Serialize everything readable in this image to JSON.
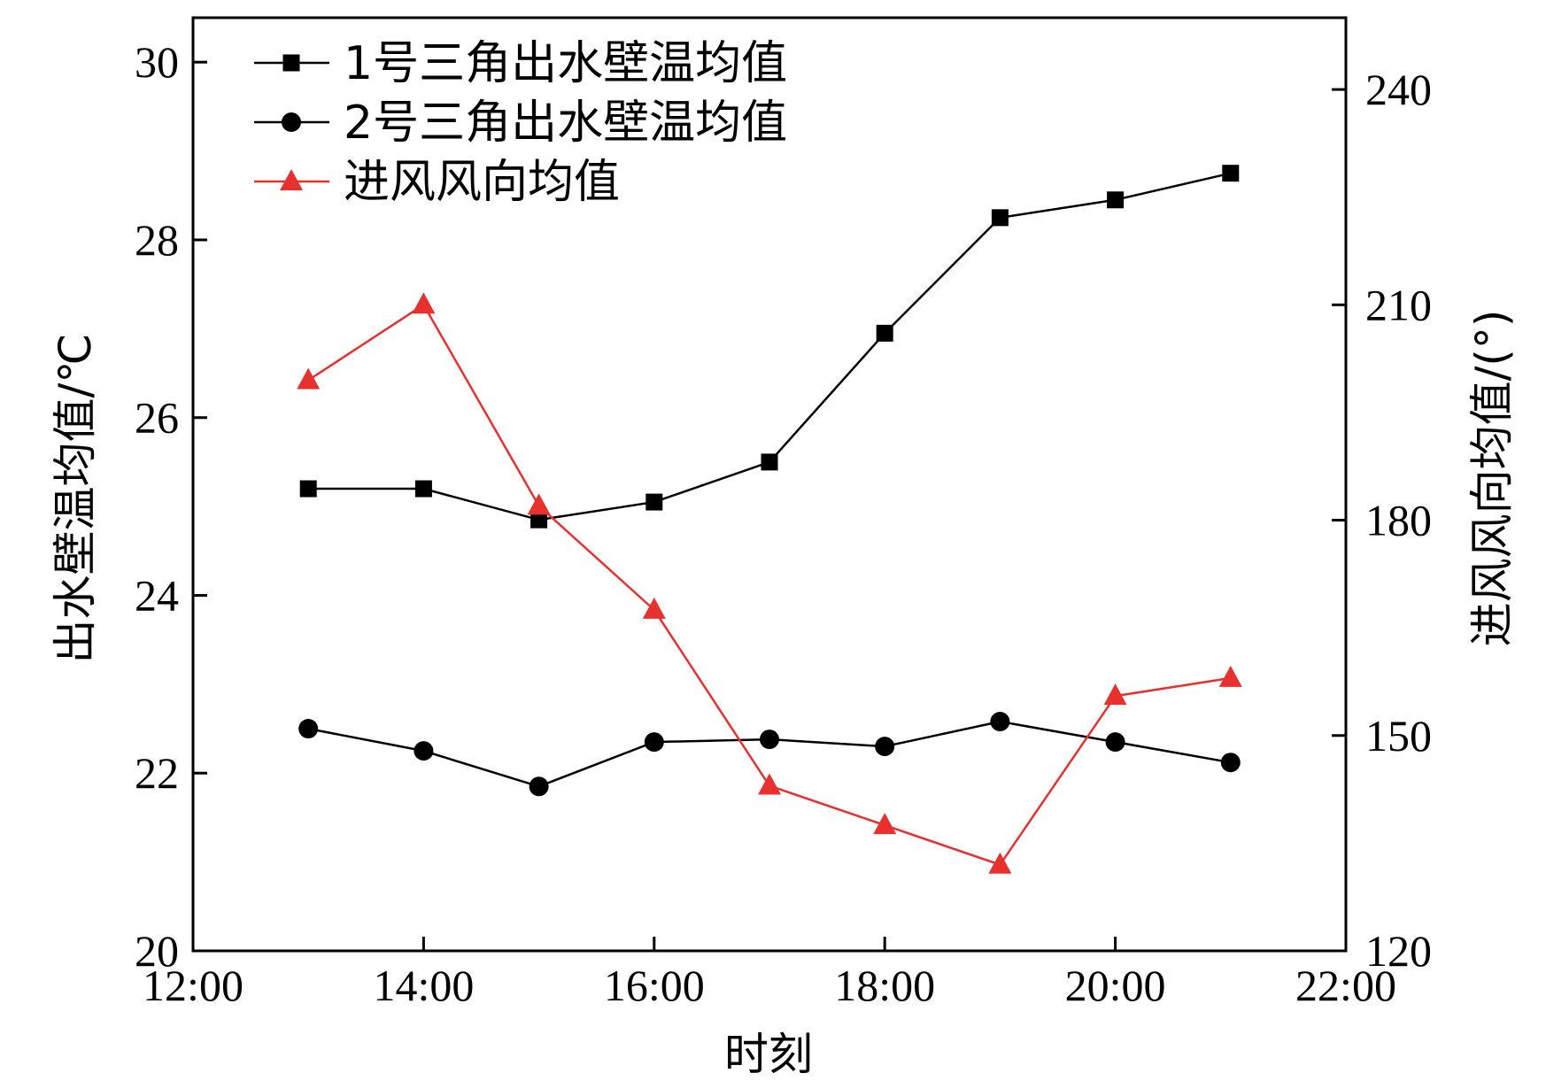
{
  "chart_data": {
    "type": "line",
    "title": "",
    "xlabel": "时刻",
    "ylabel_left": "出水壁温均值/℃",
    "ylabel_right": "进风风向均值/(°)",
    "x_ticks": [
      "12:00",
      "14:00",
      "16:00",
      "18:00",
      "20:00",
      "22:00"
    ],
    "x_hours_range": [
      12,
      22
    ],
    "y_left_ticks": [
      "20",
      "22",
      "24",
      "26",
      "28",
      "30"
    ],
    "y_left_range": [
      20,
      30.5
    ],
    "y_right_ticks": [
      "120",
      "150",
      "180",
      "210",
      "240"
    ],
    "y_right_range": [
      120,
      250
    ],
    "legend_position": "top-left",
    "grid": false,
    "x_hours": [
      13,
      14,
      15,
      16,
      17,
      18,
      19,
      20,
      21
    ],
    "series": [
      {
        "name": "1号三角出水壁温均值",
        "axis": "left",
        "marker": "square",
        "color": "#000000",
        "values": [
          25.2,
          25.2,
          24.85,
          25.05,
          25.5,
          26.95,
          28.25,
          28.45,
          28.75
        ]
      },
      {
        "name": "2号三角出水壁温均值",
        "axis": "left",
        "marker": "circle",
        "color": "#000000",
        "values": [
          22.5,
          22.25,
          21.85,
          22.35,
          22.38,
          22.3,
          22.58,
          22.35,
          22.12
        ]
      },
      {
        "name": "进风风向均值",
        "axis": "right",
        "marker": "triangle",
        "color": "#e8312f",
        "values": [
          199.5,
          210,
          182,
          167.5,
          143,
          137.5,
          132,
          155.5,
          158
        ]
      }
    ]
  }
}
